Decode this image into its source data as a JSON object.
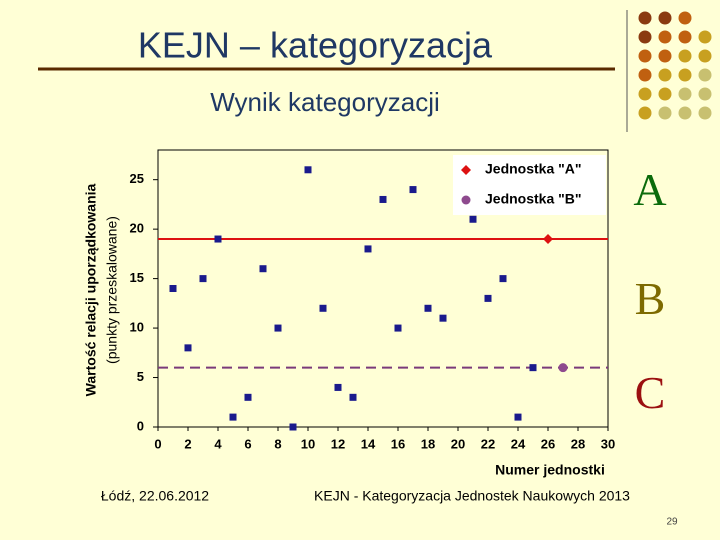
{
  "header": {
    "title": "KEJN – kategoryzacja",
    "subtitle": "Wynik kategoryzacji"
  },
  "chart_data": {
    "type": "scatter",
    "ylabel": "Wartość relacji uporządkowania",
    "ylabel2": "(punkty przeskalowane)",
    "xlabel": "Numer jednostki",
    "xlim": [
      0,
      30
    ],
    "ylim": [
      0,
      28
    ],
    "xticks": [
      0,
      2,
      4,
      6,
      8,
      10,
      12,
      14,
      16,
      18,
      20,
      22,
      24,
      26,
      28,
      30
    ],
    "yticks": [
      0,
      5,
      10,
      15,
      20,
      25
    ],
    "legend": "upper right",
    "series": [
      {
        "color": "#1a1a8c",
        "marker": "square",
        "x": [
          1,
          2,
          3,
          4,
          5,
          6,
          7,
          8,
          9,
          10,
          11,
          12,
          13,
          14,
          15,
          16,
          17,
          18,
          19,
          21,
          22,
          23,
          24,
          25
        ],
        "values": [
          14,
          8,
          15,
          19,
          1,
          3,
          16,
          10,
          0,
          26,
          12,
          4,
          3,
          18,
          23,
          10,
          24,
          12,
          11,
          21,
          13,
          15,
          1,
          6
        ]
      },
      {
        "name": "Jednostka \"A\"",
        "color": "#dd1111",
        "marker": "diamond",
        "x": [
          26
        ],
        "values": [
          19
        ]
      },
      {
        "name": "Jednostka \"B\"",
        "color": "#8e4a8e",
        "marker": "circle",
        "x": [
          27
        ],
        "values": [
          6
        ]
      }
    ],
    "thresholds": [
      {
        "value": 19,
        "color": "#dd1111",
        "style": "solid"
      },
      {
        "value": 6,
        "color": "#7a3a7a",
        "style": "dashed"
      }
    ],
    "zone_labels": [
      {
        "label": "A",
        "color": "#0b6b0b"
      },
      {
        "label": "B",
        "color": "#7d6a00"
      },
      {
        "label": "C",
        "color": "#9b1010"
      }
    ]
  },
  "footer": {
    "left": "Łódź, 22.06.2012",
    "center": "KEJN - Kategoryzacja Jednostek Naukowych 2013",
    "page": "29"
  }
}
